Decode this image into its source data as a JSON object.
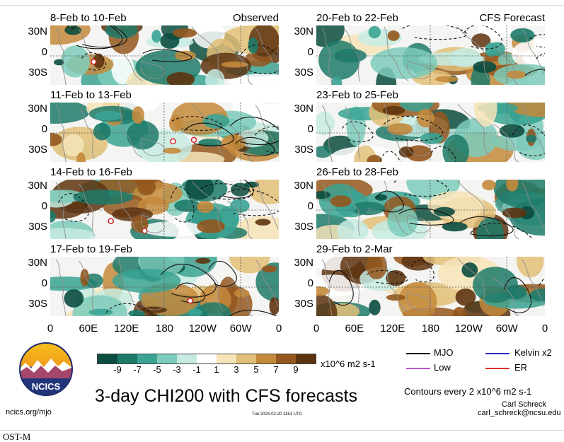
{
  "panels": [
    {
      "title": "8-Feb to 10-Feb",
      "tag": "Observed",
      "seed": 3
    },
    {
      "title": "20-Feb to 22-Feb",
      "tag": "CFS Forecast",
      "seed": 11
    },
    {
      "title": "11-Feb to 13-Feb",
      "tag": "",
      "seed": 5
    },
    {
      "title": "23-Feb to 25-Feb",
      "tag": "",
      "seed": 17
    },
    {
      "title": "14-Feb to 16-Feb",
      "tag": "",
      "seed": 7
    },
    {
      "title": "26-Feb to 28-Feb",
      "tag": "",
      "seed": 23
    },
    {
      "title": "17-Feb to 19-Feb",
      "tag": "",
      "seed": 9
    },
    {
      "title": "29-Feb to 2-Mar",
      "tag": "",
      "seed": 29
    }
  ],
  "lat_labels": [
    "30N",
    "0",
    "30S"
  ],
  "lon_labels": [
    "0",
    "60E",
    "120E",
    "180",
    "120W",
    "60W",
    "0"
  ],
  "colorbar": {
    "ticks": [
      "-9",
      "-7",
      "-5",
      "-3",
      "-1",
      "1",
      "3",
      "5",
      "7",
      "9"
    ],
    "colors": [
      "#0b4d3f",
      "#1d7a6a",
      "#3aa393",
      "#7ccbbb",
      "#c6ebe3",
      "#ffffff",
      "#f6e4b8",
      "#e2bf78",
      "#c48a3c",
      "#94571d",
      "#5e3410"
    ],
    "units": "x10^6 m2 s-1"
  },
  "legend": [
    {
      "label": "MJO",
      "color": "#000000"
    },
    {
      "label": "Kelvin x2",
      "color": "#2233bb"
    },
    {
      "label": "Low",
      "color": "#bb55cc"
    },
    {
      "label": "ER",
      "color": "#dd3333"
    }
  ],
  "contour_note": "Contours every 2 x10^6 m2 s-1",
  "title": "3-day CHI200 with CFS forecasts",
  "logo_text": "NCICS",
  "site": "ncics.org/mjo",
  "timestamp": "Tue 2024-02-20 1151 UTC",
  "author": "Carl Schreck",
  "email": "carl_schreck@ncsu.edu",
  "footer_cut": "OST-M"
}
